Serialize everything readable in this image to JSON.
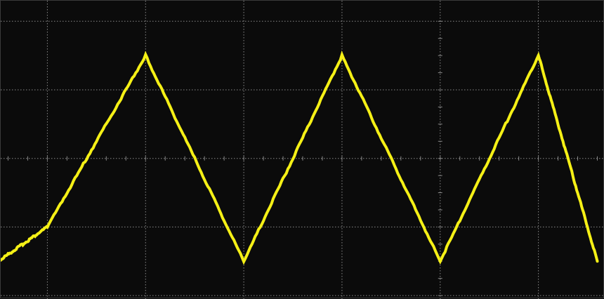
{
  "colors": {
    "background": "#0b0b0b",
    "grid": "#8a8a8a",
    "trace": "#f5f016",
    "border": "#3a3a3a"
  },
  "chart_data": {
    "type": "line",
    "title": "",
    "xlabel": "",
    "ylabel": "",
    "series": [
      {
        "x": [
          0,
          1,
          3,
          5,
          7,
          9,
          11,
          12.2
        ],
        "values": [
          -1.5,
          -1.0,
          1.5,
          -1.5,
          1.5,
          -1.5,
          1.5,
          -1.5
        ]
      }
    ],
    "xlim": [
      0.05,
      12.35
    ],
    "ylim": [
      -2.05,
      2.3
    ],
    "x_divisions": 6,
    "y_divisions": 4,
    "grid": true,
    "grid_style": "dotted",
    "center_axis_ticks": true,
    "waveform": "triangle"
  }
}
